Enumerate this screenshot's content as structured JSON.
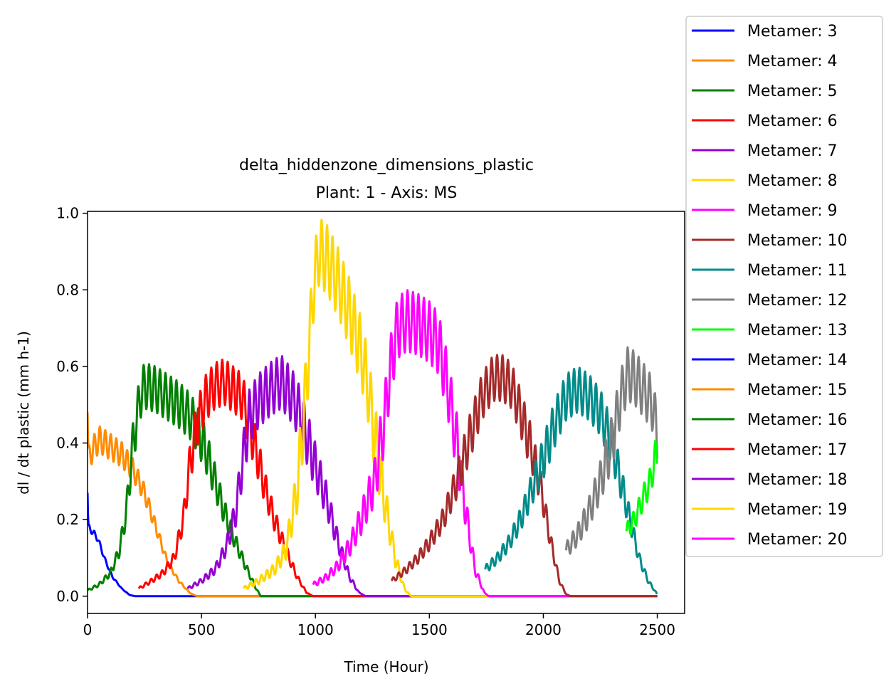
{
  "chart_data": {
    "type": "line",
    "title": "delta_hiddenzone_dimensions_plastic",
    "subtitle": "Plant: 1 - Axis: MS",
    "xlabel": "Time (Hour)",
    "ylabel": "dl / dt plastic (mm h-1)",
    "xlim": [
      0,
      2620
    ],
    "ylim": [
      -0.045,
      1.005
    ],
    "xticks": [
      0,
      500,
      1000,
      1500,
      2000,
      2500
    ],
    "xtick_labels": [
      "0",
      "500",
      "1000",
      "1500",
      "2000",
      "2500"
    ],
    "yticks": [
      0.0,
      0.2,
      0.4,
      0.6,
      0.8,
      1.0
    ],
    "ytick_labels": [
      "0.0",
      "0.2",
      "0.4",
      "0.6",
      "0.8",
      "1.0"
    ],
    "grid": false,
    "legend_position": "outside-top-right",
    "series": [
      {
        "name": "Metamer: 3",
        "color": "#0000ff",
        "start": 0,
        "amp": 0.02,
        "points": [
          [
            0,
            0.27
          ],
          [
            3,
            0.18
          ],
          [
            20,
            0.17
          ],
          [
            45,
            0.15
          ],
          [
            80,
            0.09
          ],
          [
            110,
            0.05
          ],
          [
            150,
            0.02
          ],
          [
            185,
            0.003
          ],
          [
            210,
            0
          ],
          [
            2500,
            0
          ]
        ]
      },
      {
        "name": "Metamer: 4",
        "color": "#ff8c00",
        "start": 0,
        "amp": 0.035,
        "points": [
          [
            0,
            0.48
          ],
          [
            3,
            0.36
          ],
          [
            20,
            0.38
          ],
          [
            50,
            0.41
          ],
          [
            100,
            0.39
          ],
          [
            150,
            0.37
          ],
          [
            200,
            0.33
          ],
          [
            250,
            0.27
          ],
          [
            300,
            0.18
          ],
          [
            350,
            0.09
          ],
          [
            400,
            0.04
          ],
          [
            450,
            0.008
          ],
          [
            480,
            0
          ],
          [
            2500,
            0
          ]
        ]
      },
      {
        "name": "Metamer: 5",
        "color": "#008000",
        "start": 0,
        "amp": 0.06,
        "points": [
          [
            0,
            0.015
          ],
          [
            50,
            0.03
          ],
          [
            100,
            0.06
          ],
          [
            140,
            0.12
          ],
          [
            170,
            0.22
          ],
          [
            200,
            0.4
          ],
          [
            230,
            0.52
          ],
          [
            250,
            0.55
          ],
          [
            300,
            0.54
          ],
          [
            350,
            0.52
          ],
          [
            400,
            0.5
          ],
          [
            450,
            0.47
          ],
          [
            480,
            0.44
          ],
          [
            520,
            0.38
          ],
          [
            560,
            0.3
          ],
          [
            600,
            0.22
          ],
          [
            650,
            0.14
          ],
          [
            700,
            0.07
          ],
          [
            740,
            0.02
          ],
          [
            760,
            0
          ],
          [
            2500,
            0
          ]
        ]
      },
      {
        "name": "Metamer: 6",
        "color": "#ff0000",
        "start": 225,
        "amp": 0.06,
        "points": [
          [
            225,
            0.02
          ],
          [
            280,
            0.04
          ],
          [
            330,
            0.06
          ],
          [
            380,
            0.1
          ],
          [
            420,
            0.2
          ],
          [
            450,
            0.35
          ],
          [
            480,
            0.45
          ],
          [
            520,
            0.52
          ],
          [
            560,
            0.55
          ],
          [
            600,
            0.56
          ],
          [
            640,
            0.54
          ],
          [
            680,
            0.52
          ],
          [
            700,
            0.47
          ],
          [
            740,
            0.38
          ],
          [
            780,
            0.28
          ],
          [
            820,
            0.2
          ],
          [
            870,
            0.12
          ],
          [
            920,
            0.05
          ],
          [
            960,
            0.01
          ],
          [
            990,
            0
          ],
          [
            2500,
            0
          ]
        ]
      },
      {
        "name": "Metamer: 7",
        "color": "#9400d3",
        "start": 440,
        "amp": 0.07,
        "points": [
          [
            440,
            0.02
          ],
          [
            500,
            0.04
          ],
          [
            560,
            0.07
          ],
          [
            610,
            0.13
          ],
          [
            650,
            0.22
          ],
          [
            680,
            0.35
          ],
          [
            710,
            0.47
          ],
          [
            750,
            0.51
          ],
          [
            800,
            0.54
          ],
          [
            850,
            0.56
          ],
          [
            900,
            0.52
          ],
          [
            930,
            0.48
          ],
          [
            960,
            0.42
          ],
          [
            1000,
            0.34
          ],
          [
            1050,
            0.25
          ],
          [
            1100,
            0.14
          ],
          [
            1150,
            0.05
          ],
          [
            1190,
            0.01
          ],
          [
            1220,
            0
          ],
          [
            2500,
            0
          ]
        ]
      },
      {
        "name": "Metamer: 8",
        "color": "#ffd700",
        "start": 685,
        "amp": 0.09,
        "points": [
          [
            685,
            0.02
          ],
          [
            750,
            0.04
          ],
          [
            820,
            0.07
          ],
          [
            870,
            0.12
          ],
          [
            920,
            0.28
          ],
          [
            960,
            0.55
          ],
          [
            990,
            0.8
          ],
          [
            1015,
            0.9
          ],
          [
            1050,
            0.88
          ],
          [
            1100,
            0.82
          ],
          [
            1150,
            0.74
          ],
          [
            1200,
            0.64
          ],
          [
            1230,
            0.55
          ],
          [
            1260,
            0.42
          ],
          [
            1300,
            0.26
          ],
          [
            1350,
            0.1
          ],
          [
            1390,
            0.02
          ],
          [
            1420,
            0
          ],
          [
            2500,
            0
          ]
        ]
      },
      {
        "name": "Metamer: 9",
        "color": "#ff00ff",
        "start": 990,
        "amp": 0.08,
        "points": [
          [
            990,
            0.03
          ],
          [
            1050,
            0.05
          ],
          [
            1100,
            0.08
          ],
          [
            1150,
            0.13
          ],
          [
            1200,
            0.2
          ],
          [
            1260,
            0.3
          ],
          [
            1300,
            0.45
          ],
          [
            1330,
            0.6
          ],
          [
            1360,
            0.7
          ],
          [
            1400,
            0.72
          ],
          [
            1450,
            0.71
          ],
          [
            1500,
            0.69
          ],
          [
            1540,
            0.66
          ],
          [
            1580,
            0.55
          ],
          [
            1620,
            0.4
          ],
          [
            1660,
            0.22
          ],
          [
            1700,
            0.07
          ],
          [
            1740,
            0.01
          ],
          [
            1760,
            0
          ],
          [
            2500,
            0
          ]
        ]
      },
      {
        "name": "Metamer: 10",
        "color": "#a52a2a",
        "start": 1335,
        "amp": 0.06,
        "points": [
          [
            1335,
            0.04
          ],
          [
            1400,
            0.07
          ],
          [
            1450,
            0.1
          ],
          [
            1500,
            0.14
          ],
          [
            1560,
            0.2
          ],
          [
            1620,
            0.3
          ],
          [
            1680,
            0.42
          ],
          [
            1730,
            0.52
          ],
          [
            1780,
            0.57
          ],
          [
            1820,
            0.57
          ],
          [
            1860,
            0.55
          ],
          [
            1900,
            0.48
          ],
          [
            1950,
            0.38
          ],
          [
            1990,
            0.28
          ],
          [
            2030,
            0.15
          ],
          [
            2070,
            0.04
          ],
          [
            2100,
            0.005
          ],
          [
            2120,
            0
          ],
          [
            2500,
            0
          ]
        ]
      },
      {
        "name": "Metamer: 11",
        "color": "#008b8b",
        "start": 1745,
        "amp": 0.06,
        "points": [
          [
            1745,
            0.07
          ],
          [
            1800,
            0.1
          ],
          [
            1850,
            0.14
          ],
          [
            1900,
            0.2
          ],
          [
            1950,
            0.28
          ],
          [
            2000,
            0.36
          ],
          [
            2050,
            0.45
          ],
          [
            2100,
            0.52
          ],
          [
            2150,
            0.54
          ],
          [
            2200,
            0.52
          ],
          [
            2250,
            0.48
          ],
          [
            2300,
            0.4
          ],
          [
            2340,
            0.3
          ],
          [
            2380,
            0.2
          ],
          [
            2420,
            0.1
          ],
          [
            2460,
            0.04
          ],
          [
            2500,
            0.005
          ]
        ]
      },
      {
        "name": "Metamer: 12",
        "color": "#808080",
        "start": 2100,
        "amp": 0.07,
        "points": [
          [
            2100,
            0.12
          ],
          [
            2150,
            0.16
          ],
          [
            2200,
            0.22
          ],
          [
            2250,
            0.3
          ],
          [
            2300,
            0.4
          ],
          [
            2340,
            0.52
          ],
          [
            2370,
            0.58
          ],
          [
            2400,
            0.57
          ],
          [
            2450,
            0.53
          ],
          [
            2480,
            0.5
          ],
          [
            2500,
            0.42
          ]
        ]
      },
      {
        "name": "Metamer: 13",
        "color": "#00ff00",
        "start": 2365,
        "amp": 0.05,
        "points": [
          [
            2365,
            0.17
          ],
          [
            2400,
            0.2
          ],
          [
            2440,
            0.26
          ],
          [
            2470,
            0.3
          ],
          [
            2490,
            0.36
          ],
          [
            2500,
            0.37
          ]
        ]
      },
      {
        "name": "Metamer: 14",
        "color": "#0000ff",
        "start": null,
        "amp": 0,
        "points": []
      },
      {
        "name": "Metamer: 15",
        "color": "#ff8c00",
        "start": null,
        "amp": 0,
        "points": []
      },
      {
        "name": "Metamer: 16",
        "color": "#008000",
        "start": null,
        "amp": 0,
        "points": []
      },
      {
        "name": "Metamer: 17",
        "color": "#ff0000",
        "start": null,
        "amp": 0,
        "points": []
      },
      {
        "name": "Metamer: 18",
        "color": "#9400d3",
        "start": null,
        "amp": 0,
        "points": []
      },
      {
        "name": "Metamer: 19",
        "color": "#ffd700",
        "start": null,
        "amp": 0,
        "points": []
      },
      {
        "name": "Metamer: 20",
        "color": "#ff00ff",
        "start": null,
        "amp": 0,
        "points": []
      }
    ]
  }
}
